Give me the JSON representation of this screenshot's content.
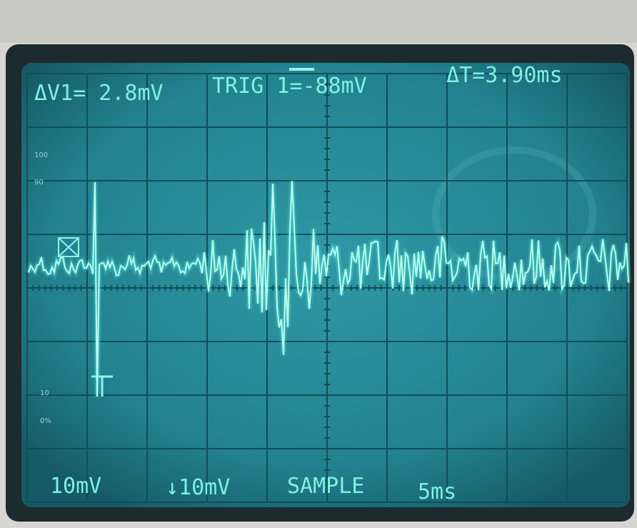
{
  "readouts": {
    "delta_v1": "ΔV1= 2.8mV",
    "trigger": "TRIG 1=-88mV",
    "delta_t": "ΔT=3.90ms"
  },
  "graticule_labels": [
    "100",
    "90",
    "10",
    "0%"
  ],
  "status": {
    "ch1_scale": "10mV",
    "ch2_scale": "↓10mV",
    "mode": "SAMPLE",
    "timebase": "5ms"
  }
}
